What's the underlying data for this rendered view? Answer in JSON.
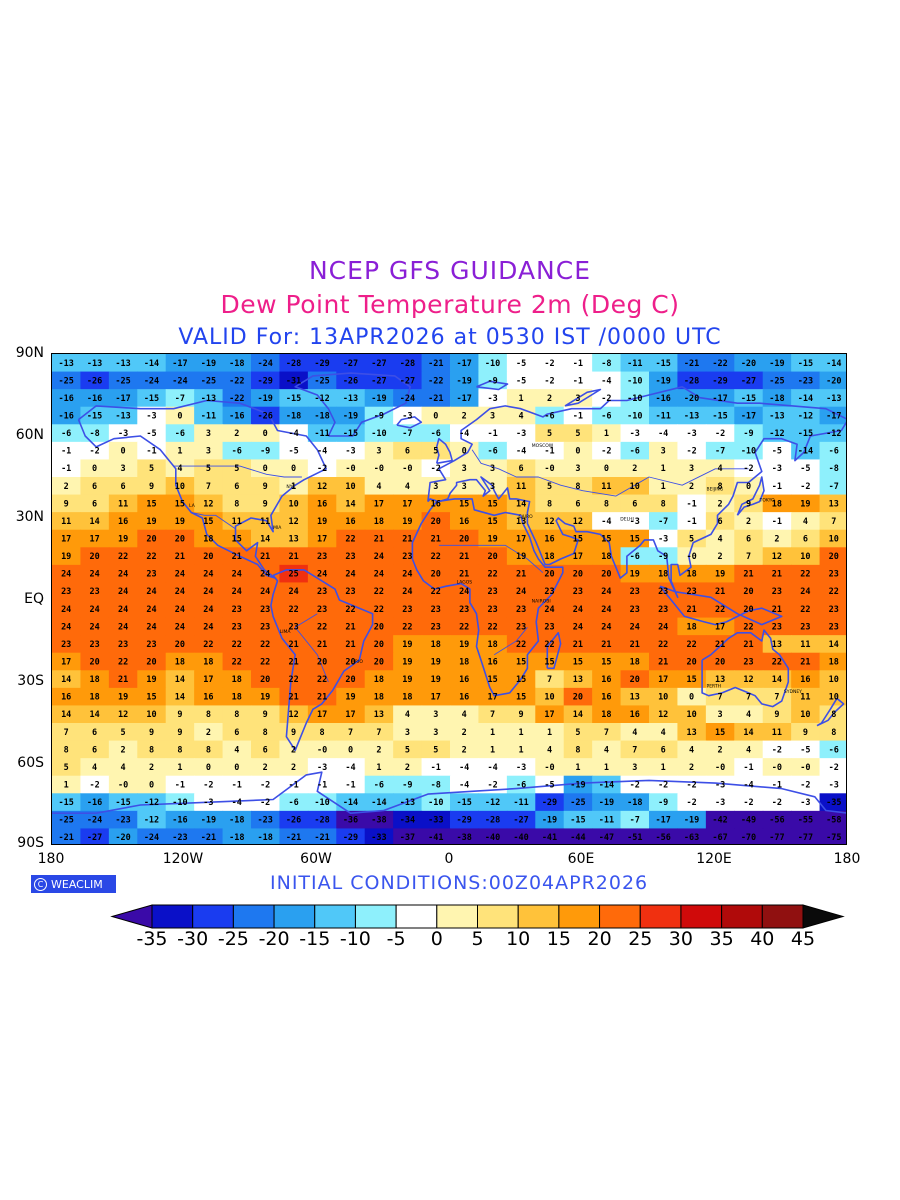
{
  "titles": {
    "line1": "NCEP GFS GUIDANCE",
    "line2": "Dew Point Temperature 2m (Deg C)",
    "line3": "VALID For: 13APR2026 at 0530 IST /0000 UTC"
  },
  "axes": {
    "y_labels": [
      "90N",
      "60N",
      "30N",
      "EQ",
      "30S",
      "60S",
      "90S"
    ],
    "x_labels": [
      "180",
      "120W",
      "60W",
      "0",
      "60E",
      "120E",
      "180"
    ]
  },
  "footer": {
    "badge": "WEACLIM",
    "initial_conditions": "INITIAL CONDITIONS:00Z04APR2026"
  },
  "colorbar": {
    "labels": [
      "-35",
      "-30",
      "-25",
      "-20",
      "-15",
      "-10",
      "-5",
      "0",
      "5",
      "10",
      "15",
      "20",
      "25",
      "30",
      "35",
      "40",
      "45"
    ],
    "colors": [
      "#3a0aa8",
      "#0a10c8",
      "#1a3cf0",
      "#1e78f0",
      "#2aa0f0",
      "#50c8f8",
      "#8ef0fc",
      "#ffffff",
      "#fff5b0",
      "#ffe37a",
      "#ffc23a",
      "#ff9a0a",
      "#ff6a0a",
      "#f03010",
      "#d00a0a",
      "#b00a0a",
      "#901010",
      "#0a0a0a"
    ]
  },
  "map_grid_values": {
    "rows": [
      [
        "-13",
        "-13",
        "-13",
        "-14",
        "-17",
        "-19",
        "-18",
        "-24",
        "-28",
        "-29",
        "-27",
        "-27",
        "-28",
        "-21",
        "-17",
        "-10",
        "-5",
        "-2",
        "-1",
        "-8",
        "-11",
        "-15",
        "-21",
        "-22",
        "-20",
        "-19",
        "-15",
        "-14"
      ],
      [
        "-25",
        "-26",
        "-25",
        "-24",
        "-24",
        "-25",
        "-22",
        "-29",
        "-31",
        "-25",
        "-26",
        "-27",
        "-27",
        "-22",
        "-19",
        "-9",
        "-5",
        "-2",
        "-1",
        "-4",
        "-10",
        "-19",
        "-28",
        "-29",
        "-27",
        "-25",
        "-23",
        "-20"
      ],
      [
        "-16",
        "-16",
        "-17",
        "-15",
        "-7",
        "-13",
        "-22",
        "-19",
        "-15",
        "-12",
        "-13",
        "-19",
        "-24",
        "-21",
        "-17",
        "-3",
        "1",
        "2",
        "3",
        "-2",
        "-10",
        "-16",
        "-20",
        "-17",
        "-15",
        "-18",
        "-14",
        "-13"
      ],
      [
        "-16",
        "-15",
        "-13",
        "-3",
        "0",
        "-11",
        "-16",
        "-26",
        "-18",
        "-18",
        "-19",
        "-9",
        "-3",
        "0",
        "2",
        "3",
        "4",
        "-6",
        "-1",
        "-6",
        "-10",
        "-11",
        "-13",
        "-15",
        "-17",
        "-13",
        "-12",
        "-17"
      ],
      [
        "-6",
        "-8",
        "-3",
        "-5",
        "-6",
        "3",
        "2",
        "0",
        "-4",
        "-11",
        "-15",
        "-10",
        "-7",
        "-6",
        "-4",
        "-1",
        "-3",
        "5",
        "5",
        "1",
        "-3",
        "-4",
        "-3",
        "-2",
        "-9",
        "-12",
        "-15",
        "-12"
      ],
      [
        "-1",
        "-2",
        "0",
        "-1",
        "1",
        "3",
        "-6",
        "-9",
        "-5",
        "-4",
        "-3",
        "3",
        "6",
        "5",
        "0",
        "-6",
        "-4",
        "-1",
        "0",
        "-2",
        "-6",
        "3",
        "-2",
        "-7",
        "-10",
        "-5",
        "-14",
        "-6"
      ],
      [
        "-1",
        "0",
        "3",
        "5",
        "4",
        "5",
        "5",
        "0",
        "0",
        "-2",
        "-0",
        "-0",
        "-0",
        "-2",
        "3",
        "3",
        "6",
        "-0",
        "3",
        "0",
        "2",
        "1",
        "3",
        "4",
        "-2",
        "-3",
        "-5",
        "-8"
      ],
      [
        "2",
        "6",
        "6",
        "9",
        "10",
        "7",
        "6",
        "9",
        "1",
        "12",
        "10",
        "4",
        "4",
        "3",
        "3",
        "3",
        "11",
        "5",
        "8",
        "11",
        "10",
        "1",
        "2",
        "8",
        "0",
        "-1",
        "-2",
        "-7"
      ],
      [
        "9",
        "6",
        "11",
        "15",
        "15",
        "12",
        "8",
        "9",
        "10",
        "16",
        "14",
        "17",
        "17",
        "16",
        "15",
        "15",
        "14",
        "8",
        "6",
        "8",
        "6",
        "8",
        "-1",
        "2",
        "9",
        "18",
        "19",
        "13"
      ],
      [
        "11",
        "14",
        "16",
        "19",
        "19",
        "15",
        "11",
        "11",
        "12",
        "19",
        "16",
        "18",
        "19",
        "20",
        "16",
        "15",
        "13",
        "12",
        "12",
        "-4",
        "-3",
        "-7",
        "-1",
        "6",
        "2",
        "-1",
        "4",
        "7"
      ],
      [
        "17",
        "17",
        "19",
        "20",
        "20",
        "18",
        "15",
        "14",
        "13",
        "17",
        "22",
        "21",
        "21",
        "21",
        "20",
        "19",
        "17",
        "16",
        "15",
        "15",
        "15",
        "-3",
        "5",
        "4",
        "6",
        "2",
        "6",
        "10"
      ],
      [
        "19",
        "20",
        "22",
        "22",
        "21",
        "20",
        "21",
        "21",
        "21",
        "23",
        "23",
        "24",
        "23",
        "22",
        "21",
        "20",
        "19",
        "18",
        "17",
        "18",
        "-6",
        "-9",
        "-0",
        "2",
        "7",
        "12",
        "10",
        "20"
      ],
      [
        "24",
        "24",
        "24",
        "23",
        "24",
        "24",
        "24",
        "24",
        "25",
        "24",
        "24",
        "24",
        "24",
        "20",
        "21",
        "22",
        "21",
        "20",
        "20",
        "20",
        "19",
        "18",
        "18",
        "19",
        "21",
        "21",
        "22",
        "23"
      ],
      [
        "23",
        "23",
        "24",
        "24",
        "24",
        "24",
        "24",
        "24",
        "24",
        "23",
        "23",
        "22",
        "24",
        "22",
        "24",
        "23",
        "24",
        "23",
        "23",
        "24",
        "23",
        "23",
        "23",
        "21",
        "20",
        "23",
        "24",
        "22"
      ],
      [
        "24",
        "24",
        "24",
        "24",
        "24",
        "24",
        "23",
        "23",
        "22",
        "23",
        "22",
        "22",
        "23",
        "23",
        "23",
        "23",
        "23",
        "24",
        "24",
        "24",
        "23",
        "23",
        "21",
        "22",
        "20",
        "21",
        "22",
        "23"
      ],
      [
        "24",
        "24",
        "24",
        "24",
        "24",
        "24",
        "23",
        "23",
        "23",
        "22",
        "21",
        "20",
        "22",
        "23",
        "22",
        "22",
        "23",
        "23",
        "24",
        "24",
        "24",
        "24",
        "18",
        "17",
        "22",
        "23",
        "23",
        "23"
      ],
      [
        "23",
        "23",
        "23",
        "23",
        "20",
        "22",
        "22",
        "22",
        "21",
        "21",
        "21",
        "20",
        "19",
        "18",
        "19",
        "18",
        "22",
        "22",
        "21",
        "21",
        "21",
        "22",
        "22",
        "21",
        "21",
        "13",
        "11",
        "14"
      ],
      [
        "17",
        "20",
        "22",
        "20",
        "18",
        "18",
        "22",
        "22",
        "21",
        "20",
        "20",
        "20",
        "19",
        "19",
        "18",
        "16",
        "15",
        "15",
        "15",
        "15",
        "18",
        "21",
        "20",
        "20",
        "23",
        "22",
        "21",
        "18"
      ],
      [
        "14",
        "18",
        "21",
        "19",
        "14",
        "17",
        "18",
        "20",
        "22",
        "22",
        "20",
        "18",
        "19",
        "19",
        "16",
        "15",
        "15",
        "7",
        "13",
        "16",
        "20",
        "17",
        "15",
        "13",
        "12",
        "14",
        "16",
        "10"
      ],
      [
        "16",
        "18",
        "19",
        "15",
        "14",
        "16",
        "18",
        "19",
        "21",
        "21",
        "19",
        "18",
        "18",
        "17",
        "16",
        "17",
        "15",
        "10",
        "20",
        "16",
        "13",
        "10",
        "0",
        "7",
        "7",
        "7",
        "11",
        "10"
      ],
      [
        "14",
        "14",
        "12",
        "10",
        "9",
        "8",
        "8",
        "9",
        "12",
        "17",
        "17",
        "13",
        "4",
        "3",
        "4",
        "7",
        "9",
        "17",
        "14",
        "18",
        "16",
        "12",
        "10",
        "3",
        "4",
        "9",
        "10",
        "8"
      ],
      [
        "7",
        "6",
        "5",
        "9",
        "9",
        "2",
        "6",
        "8",
        "9",
        "8",
        "7",
        "7",
        "3",
        "3",
        "2",
        "1",
        "1",
        "1",
        "5",
        "7",
        "4",
        "4",
        "13",
        "15",
        "14",
        "11",
        "9",
        "8"
      ],
      [
        "8",
        "6",
        "2",
        "8",
        "8",
        "8",
        "4",
        "6",
        "2",
        "-0",
        "0",
        "2",
        "5",
        "5",
        "2",
        "1",
        "1",
        "4",
        "8",
        "4",
        "7",
        "6",
        "4",
        "2",
        "4",
        "-2",
        "-5",
        "-6"
      ],
      [
        "5",
        "4",
        "4",
        "2",
        "1",
        "0",
        "0",
        "2",
        "2",
        "-3",
        "-4",
        "1",
        "2",
        "-1",
        "-4",
        "-4",
        "-3",
        "-0",
        "1",
        "1",
        "3",
        "1",
        "2",
        "-0",
        "-1",
        "-0",
        "-0",
        "-2"
      ],
      [
        "1",
        "-2",
        "-0",
        "0",
        "-1",
        "-2",
        "-1",
        "-2",
        "-1",
        "-1",
        "-1",
        "-6",
        "-9",
        "-8",
        "-4",
        "-2",
        "-6",
        "-5",
        "-19",
        "-14",
        "-2",
        "-2",
        "-2",
        "-3",
        "-4",
        "-1",
        "-2",
        "-3"
      ],
      [
        "-15",
        "-16",
        "-15",
        "-12",
        "-10",
        "-3",
        "-4",
        "-2",
        "-6",
        "-10",
        "-14",
        "-14",
        "-13",
        "-10",
        "-15",
        "-12",
        "-11",
        "-29",
        "-25",
        "-19",
        "-18",
        "-9",
        "-2",
        "-3",
        "-2",
        "-2",
        "-3",
        "-35"
      ],
      [
        "-25",
        "-24",
        "-23",
        "-12",
        "-16",
        "-19",
        "-18",
        "-23",
        "-26",
        "-28",
        "-36",
        "-38",
        "-34",
        "-33",
        "-29",
        "-28",
        "-27",
        "-19",
        "-15",
        "-11",
        "-7",
        "-17",
        "-19",
        "-42",
        "-49",
        "-56",
        "-55",
        "-58"
      ],
      [
        "-21",
        "-27",
        "-20",
        "-24",
        "-23",
        "-21",
        "-18",
        "-18",
        "-21",
        "-21",
        "-29",
        "-33",
        "-37",
        "-41",
        "-38",
        "-40",
        "-40",
        "-41",
        "-44",
        "-47",
        "-51",
        "-56",
        "-63",
        "-67",
        "-70",
        "-77",
        "-77",
        "-75"
      ]
    ],
    "city_markers": [
      "NYC",
      "MIA",
      "LA",
      "CAIRO",
      "MOSCOW",
      "DELHI",
      "TOKYO",
      "BEIJING",
      "SYDNEY",
      "LIMA",
      "RIO",
      "LAGOS",
      "NAIROBI",
      "PERTH"
    ]
  }
}
